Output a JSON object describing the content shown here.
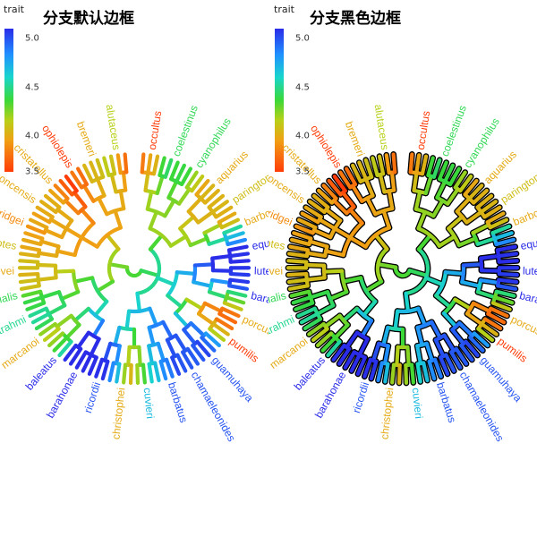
{
  "panels": [
    {
      "title": "分支默认边框",
      "outline": false,
      "legend_title": "trait"
    },
    {
      "title": "分支黑色边框",
      "outline": true,
      "legend_title": "trait"
    }
  ],
  "chart_data": {
    "type": "circular-phylogeny",
    "color_scale": {
      "variable": "trait",
      "range": [
        3.5,
        5.0
      ],
      "ticks": [
        "5.0",
        "4.5",
        "4.0",
        "3.5"
      ],
      "colors": [
        "#2a2ce8",
        "#2090ff",
        "#19d6cc",
        "#3ad838",
        "#b8d018",
        "#f0a014",
        "#ff3c08"
      ]
    },
    "tip_labels": [
      {
        "name": "occultus",
        "trait": 3.5
      },
      {
        "name": "coelestinus",
        "trait": 4.3
      },
      {
        "name": "cyanophilus",
        "trait": 4.3
      },
      {
        "name": "aquarius",
        "trait": 3.8
      },
      {
        "name": "paringtoni",
        "trait": 3.9
      },
      {
        "name": "barbouri",
        "trait": 3.8
      },
      {
        "name": "equestris",
        "trait": 5.0
      },
      {
        "name": "luteogularis",
        "trait": 5.0
      },
      {
        "name": "baracoae",
        "trait": 5.0
      },
      {
        "name": "porcus",
        "trait": 3.8
      },
      {
        "name": "pumilis",
        "trait": 3.5
      },
      {
        "name": "guamuhaya",
        "trait": 4.9
      },
      {
        "name": "chamaeleonides",
        "trait": 4.9
      },
      {
        "name": "barbatus",
        "trait": 4.9
      },
      {
        "name": "cuvieri",
        "trait": 4.6
      },
      {
        "name": "christophei",
        "trait": 3.8
      },
      {
        "name": "ricordii",
        "trait": 4.9
      },
      {
        "name": "barahonae",
        "trait": 5.0
      },
      {
        "name": "baleatus",
        "trait": 5.0
      },
      {
        "name": "marcanoi",
        "trait": 3.8
      },
      {
        "name": "strahmi",
        "trait": 4.4
      },
      {
        "name": "longitibialis",
        "trait": 4.3
      },
      {
        "name": "shrevei",
        "trait": 3.8
      },
      {
        "name": "cybotes",
        "trait": 3.9
      },
      {
        "name": "etheridgei",
        "trait": 3.7
      },
      {
        "name": "poncensis",
        "trait": 3.8
      },
      {
        "name": "cristatellus",
        "trait": 3.8
      },
      {
        "name": "ophiolepis",
        "trait": 3.5
      },
      {
        "name": "bremeri",
        "trait": 3.8
      },
      {
        "name": "alutaceus",
        "trait": 4.0
      }
    ]
  }
}
